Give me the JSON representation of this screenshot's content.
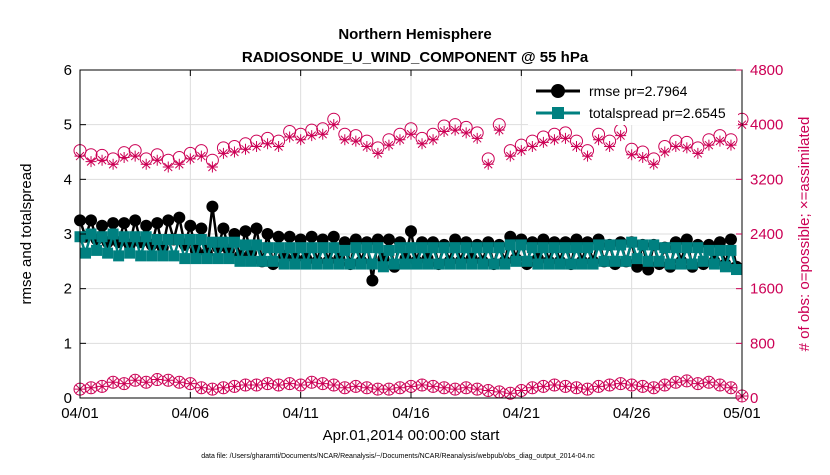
{
  "chart_data": {
    "type": "line",
    "title": "Northern Hemisphere",
    "subtitle": "RADIOSONDE_U_WIND_COMPONENT @ 55 hPa",
    "xlabel": "Apr.01,2014 00:00:00 start",
    "ylabel": "rmse and totalspread",
    "ylabel_right": "# of obs: o=possible; ×=assimilated",
    "footnote": "data file: /Users/gharamti/Documents/NCAR/Reanalysis/~/Documents/NCAR/Reanalysis/webpub/obs_diag_output_2014-04.nc",
    "xlim": [
      0,
      30
    ],
    "ylim": [
      0,
      6
    ],
    "ylim_right": [
      0,
      4800
    ],
    "x_ticks": [
      0,
      5,
      10,
      15,
      20,
      25,
      30
    ],
    "x_tick_labels": [
      "04/01",
      "04/06",
      "04/11",
      "04/16",
      "04/21",
      "04/26",
      "05/01"
    ],
    "y_ticks": [
      0,
      1,
      2,
      3,
      4,
      5,
      6
    ],
    "y_tick_labels": [
      "0",
      "1",
      "2",
      "3",
      "4",
      "5",
      "6"
    ],
    "y_right_ticks": [
      0,
      800,
      1600,
      2400,
      3200,
      4000,
      4800
    ],
    "y_right_tick_labels": [
      "0",
      "800",
      "1600",
      "2400",
      "3200",
      "4000",
      "4800"
    ],
    "grid": true,
    "legend_position": "top-right",
    "colors": {
      "rmse": "#000000",
      "totalspread": "#008080",
      "obs": "#cc0055",
      "grid": "#dddddd"
    },
    "series": [
      {
        "name": "rmse pr=2.7964",
        "axis": "left",
        "marker": "filled-circle",
        "x": [
          0.0,
          0.25,
          0.5,
          0.75,
          1.0,
          1.25,
          1.5,
          1.75,
          2.0,
          2.25,
          2.5,
          2.75,
          3.0,
          3.25,
          3.5,
          3.75,
          4.0,
          4.25,
          4.5,
          4.75,
          5.0,
          5.25,
          5.5,
          5.75,
          6.0,
          6.25,
          6.5,
          6.75,
          7.0,
          7.25,
          7.5,
          7.75,
          8.0,
          8.25,
          8.5,
          8.75,
          9.0,
          9.25,
          9.5,
          9.75,
          10.0,
          10.25,
          10.5,
          10.75,
          11.0,
          11.25,
          11.5,
          11.75,
          12.0,
          12.25,
          12.5,
          12.75,
          13.0,
          13.25,
          13.5,
          13.75,
          14.0,
          14.25,
          14.5,
          14.75,
          15.0,
          15.25,
          15.5,
          15.75,
          16.0,
          16.25,
          16.5,
          16.75,
          17.0,
          17.25,
          17.5,
          17.75,
          18.0,
          18.25,
          18.5,
          18.75,
          19.0,
          19.25,
          19.5,
          19.75,
          20.0,
          20.25,
          20.5,
          20.75,
          21.0,
          21.25,
          21.5,
          21.75,
          22.0,
          22.25,
          22.5,
          22.75,
          23.0,
          23.25,
          23.5,
          23.75,
          24.0,
          24.25,
          24.5,
          24.75,
          25.0,
          25.25,
          25.5,
          25.75,
          26.0,
          26.25,
          26.5,
          26.75,
          27.0,
          27.25,
          27.5,
          27.75,
          28.0,
          28.25,
          28.5,
          28.75,
          29.0,
          29.25,
          29.5,
          29.75
        ],
        "values": [
          3.25,
          2.95,
          3.25,
          2.9,
          3.15,
          2.85,
          3.2,
          2.85,
          3.2,
          2.8,
          3.25,
          2.85,
          3.15,
          2.8,
          3.2,
          2.75,
          3.25,
          2.9,
          3.3,
          2.8,
          3.15,
          2.7,
          3.1,
          2.65,
          3.5,
          2.75,
          3.1,
          2.7,
          3.0,
          2.6,
          3.05,
          2.65,
          3.1,
          2.5,
          3.0,
          2.45,
          2.95,
          2.6,
          2.95,
          2.55,
          2.9,
          2.55,
          2.95,
          2.5,
          2.9,
          2.5,
          2.95,
          2.55,
          2.85,
          2.45,
          2.9,
          2.5,
          2.85,
          2.15,
          2.9,
          2.55,
          2.9,
          2.4,
          2.85,
          2.55,
          3.05,
          2.5,
          2.85,
          2.55,
          2.85,
          2.45,
          2.8,
          2.5,
          2.9,
          2.5,
          2.85,
          2.55,
          2.8,
          2.5,
          2.85,
          2.45,
          2.8,
          2.5,
          2.95,
          2.55,
          2.9,
          2.45,
          2.85,
          2.55,
          2.9,
          2.5,
          2.85,
          2.5,
          2.85,
          2.45,
          2.9,
          2.5,
          2.85,
          2.5,
          2.9,
          2.5,
          2.8,
          2.45,
          2.85,
          2.5,
          2.85,
          2.4,
          2.8,
          2.35,
          2.8,
          2.45,
          2.75,
          2.4,
          2.85,
          2.5,
          2.9,
          2.4,
          2.8,
          2.45,
          2.8,
          2.5,
          2.85,
          2.45,
          2.9,
          2.4
        ]
      },
      {
        "name": "totalspread pr=2.6545",
        "axis": "left",
        "marker": "filled-square",
        "x": [
          0.0,
          0.25,
          0.5,
          0.75,
          1.0,
          1.25,
          1.5,
          1.75,
          2.0,
          2.25,
          2.5,
          2.75,
          3.0,
          3.25,
          3.5,
          3.75,
          4.0,
          4.25,
          4.5,
          4.75,
          5.0,
          5.25,
          5.5,
          5.75,
          6.0,
          6.25,
          6.5,
          6.75,
          7.0,
          7.25,
          7.5,
          7.75,
          8.0,
          8.25,
          8.5,
          8.75,
          9.0,
          9.25,
          9.5,
          9.75,
          10.0,
          10.25,
          10.5,
          10.75,
          11.0,
          11.25,
          11.5,
          11.75,
          12.0,
          12.25,
          12.5,
          12.75,
          13.0,
          13.25,
          13.5,
          13.75,
          14.0,
          14.25,
          14.5,
          14.75,
          15.0,
          15.25,
          15.5,
          15.75,
          16.0,
          16.25,
          16.5,
          16.75,
          17.0,
          17.25,
          17.5,
          17.75,
          18.0,
          18.25,
          18.5,
          18.75,
          19.0,
          19.25,
          19.5,
          19.75,
          20.0,
          20.25,
          20.5,
          20.75,
          21.0,
          21.25,
          21.5,
          21.75,
          22.0,
          22.25,
          22.5,
          22.75,
          23.0,
          23.25,
          23.5,
          23.75,
          24.0,
          24.25,
          24.5,
          24.75,
          25.0,
          25.25,
          25.5,
          25.75,
          26.0,
          26.25,
          26.5,
          26.75,
          27.0,
          27.25,
          27.5,
          27.75,
          28.0,
          28.25,
          28.5,
          28.75,
          29.0,
          29.25,
          29.5,
          29.75
        ],
        "values": [
          2.95,
          2.65,
          3.0,
          2.7,
          2.95,
          2.65,
          3.0,
          2.6,
          2.95,
          2.65,
          2.95,
          2.6,
          2.95,
          2.6,
          2.9,
          2.6,
          2.9,
          2.6,
          2.9,
          2.55,
          2.9,
          2.55,
          2.9,
          2.55,
          2.85,
          2.55,
          2.85,
          2.55,
          2.85,
          2.5,
          2.8,
          2.5,
          2.8,
          2.5,
          2.75,
          2.5,
          2.75,
          2.45,
          2.75,
          2.45,
          2.75,
          2.45,
          2.75,
          2.45,
          2.75,
          2.45,
          2.75,
          2.45,
          2.7,
          2.45,
          2.75,
          2.45,
          2.75,
          2.45,
          2.75,
          2.4,
          2.7,
          2.45,
          2.75,
          2.45,
          2.75,
          2.45,
          2.75,
          2.45,
          2.75,
          2.45,
          2.75,
          2.45,
          2.75,
          2.45,
          2.75,
          2.45,
          2.75,
          2.45,
          2.75,
          2.45,
          2.75,
          2.45,
          2.8,
          2.5,
          2.8,
          2.5,
          2.75,
          2.45,
          2.75,
          2.45,
          2.75,
          2.45,
          2.75,
          2.45,
          2.75,
          2.45,
          2.75,
          2.45,
          2.8,
          2.5,
          2.8,
          2.5,
          2.8,
          2.5,
          2.85,
          2.55,
          2.8,
          2.5,
          2.8,
          2.5,
          2.75,
          2.45,
          2.75,
          2.45,
          2.75,
          2.45,
          2.75,
          2.5,
          2.7,
          2.45,
          2.7,
          2.4,
          2.7,
          2.35
        ]
      },
      {
        "name": "obs possible",
        "axis": "right",
        "marker": "open-circle",
        "x": [
          0.0,
          0.5,
          1.0,
          1.5,
          2.0,
          2.5,
          3.0,
          3.5,
          4.0,
          4.5,
          5.0,
          5.5,
          6.0,
          6.5,
          7.0,
          7.5,
          8.0,
          8.5,
          9.0,
          9.5,
          10.0,
          10.5,
          11.0,
          11.5,
          12.0,
          12.5,
          13.0,
          13.5,
          14.0,
          14.5,
          15.0,
          15.5,
          16.0,
          16.5,
          17.0,
          17.5,
          18.0,
          18.5,
          19.0,
          19.5,
          20.0,
          20.5,
          21.0,
          21.5,
          22.0,
          22.5,
          23.0,
          23.5,
          24.0,
          24.5,
          25.0,
          25.5,
          26.0,
          26.5,
          27.0,
          27.5,
          28.0,
          28.5,
          29.0,
          29.5,
          30.0
        ],
        "values": [
          3620,
          3560,
          3550,
          3500,
          3590,
          3620,
          3500,
          3560,
          3480,
          3520,
          3580,
          3620,
          3480,
          3660,
          3680,
          3720,
          3760,
          3800,
          3760,
          3900,
          3860,
          3920,
          3940,
          4080,
          3860,
          3840,
          3760,
          3660,
          3780,
          3860,
          3940,
          3800,
          3860,
          3980,
          4000,
          3960,
          3880,
          3500,
          4000,
          3620,
          3700,
          3760,
          3820,
          3860,
          3880,
          3760,
          3620,
          3860,
          3760,
          3920,
          3640,
          3600,
          3500,
          3680,
          3760,
          3740,
          3660,
          3780,
          3840,
          3780,
          4080
        ]
      },
      {
        "name": "obs assimilated",
        "axis": "right",
        "marker": "asterisk",
        "x": [
          0.0,
          0.5,
          1.0,
          1.5,
          2.0,
          2.5,
          3.0,
          3.5,
          4.0,
          4.5,
          5.0,
          5.5,
          6.0,
          6.5,
          7.0,
          7.5,
          8.0,
          8.5,
          9.0,
          9.5,
          10.0,
          10.5,
          11.0,
          11.5,
          12.0,
          12.5,
          13.0,
          13.5,
          14.0,
          14.5,
          15.0,
          15.5,
          16.0,
          16.5,
          17.0,
          17.5,
          18.0,
          18.5,
          19.0,
          19.5,
          20.0,
          20.5,
          21.0,
          21.5,
          22.0,
          22.5,
          23.0,
          23.5,
          24.0,
          24.5,
          25.0,
          25.5,
          26.0,
          26.5,
          27.0,
          27.5,
          28.0,
          28.5,
          29.0,
          29.5,
          30.0
        ],
        "values": [
          3540,
          3460,
          3480,
          3420,
          3520,
          3540,
          3420,
          3480,
          3380,
          3420,
          3500,
          3540,
          3380,
          3580,
          3600,
          3640,
          3680,
          3720,
          3680,
          3820,
          3780,
          3840,
          3860,
          4000,
          3780,
          3760,
          3680,
          3580,
          3700,
          3780,
          3860,
          3720,
          3780,
          3900,
          3920,
          3880,
          3800,
          3420,
          3920,
          3540,
          3620,
          3680,
          3740,
          3780,
          3800,
          3680,
          3540,
          3780,
          3680,
          3840,
          3560,
          3520,
          3420,
          3600,
          3680,
          3660,
          3580,
          3700,
          3760,
          3700,
          4000
        ]
      },
      {
        "name": "obs possible (lower band)",
        "axis": "right",
        "marker": "open-circle",
        "x": [
          0.0,
          0.5,
          1.0,
          1.5,
          2.0,
          2.5,
          3.0,
          3.5,
          4.0,
          4.5,
          5.0,
          5.5,
          6.0,
          6.5,
          7.0,
          7.5,
          8.0,
          8.5,
          9.0,
          9.5,
          10.0,
          10.5,
          11.0,
          11.5,
          12.0,
          12.5,
          13.0,
          13.5,
          14.0,
          14.5,
          15.0,
          15.5,
          16.0,
          16.5,
          17.0,
          17.5,
          18.0,
          18.5,
          19.0,
          19.5,
          20.0,
          20.5,
          21.0,
          21.5,
          22.0,
          22.5,
          23.0,
          23.5,
          24.0,
          24.5,
          25.0,
          25.5,
          26.0,
          26.5,
          27.0,
          27.5,
          28.0,
          28.5,
          29.0,
          29.5,
          30.0
        ],
        "values": [
          130,
          150,
          170,
          230,
          210,
          260,
          230,
          270,
          260,
          230,
          210,
          150,
          130,
          150,
          170,
          190,
          190,
          210,
          190,
          210,
          190,
          230,
          210,
          190,
          150,
          170,
          150,
          130,
          130,
          150,
          170,
          190,
          170,
          150,
          130,
          150,
          130,
          110,
          90,
          70,
          110,
          150,
          170,
          190,
          170,
          150,
          130,
          170,
          190,
          210,
          190,
          170,
          150,
          190,
          230,
          250,
          210,
          230,
          190,
          150,
          30
        ]
      },
      {
        "name": "obs assimilated (lower band)",
        "axis": "right",
        "marker": "asterisk",
        "x": [
          0.0,
          0.5,
          1.0,
          1.5,
          2.0,
          2.5,
          3.0,
          3.5,
          4.0,
          4.5,
          5.0,
          5.5,
          6.0,
          6.5,
          7.0,
          7.5,
          8.0,
          8.5,
          9.0,
          9.5,
          10.0,
          10.5,
          11.0,
          11.5,
          12.0,
          12.5,
          13.0,
          13.5,
          14.0,
          14.5,
          15.0,
          15.5,
          16.0,
          16.5,
          17.0,
          17.5,
          18.0,
          18.5,
          19.0,
          19.5,
          20.0,
          20.5,
          21.0,
          21.5,
          22.0,
          22.5,
          23.0,
          23.5,
          24.0,
          24.5,
          25.0,
          25.5,
          26.0,
          26.5,
          27.0,
          27.5,
          28.0,
          28.5,
          29.0,
          29.5,
          30.0
        ],
        "values": [
          130,
          150,
          170,
          230,
          210,
          260,
          230,
          270,
          260,
          230,
          210,
          150,
          130,
          150,
          170,
          190,
          190,
          210,
          190,
          210,
          190,
          230,
          210,
          190,
          150,
          170,
          150,
          130,
          130,
          150,
          170,
          190,
          170,
          150,
          130,
          150,
          130,
          110,
          90,
          70,
          110,
          150,
          170,
          190,
          170,
          150,
          130,
          170,
          190,
          210,
          190,
          170,
          150,
          190,
          230,
          250,
          210,
          230,
          190,
          150,
          30
        ]
      }
    ]
  }
}
